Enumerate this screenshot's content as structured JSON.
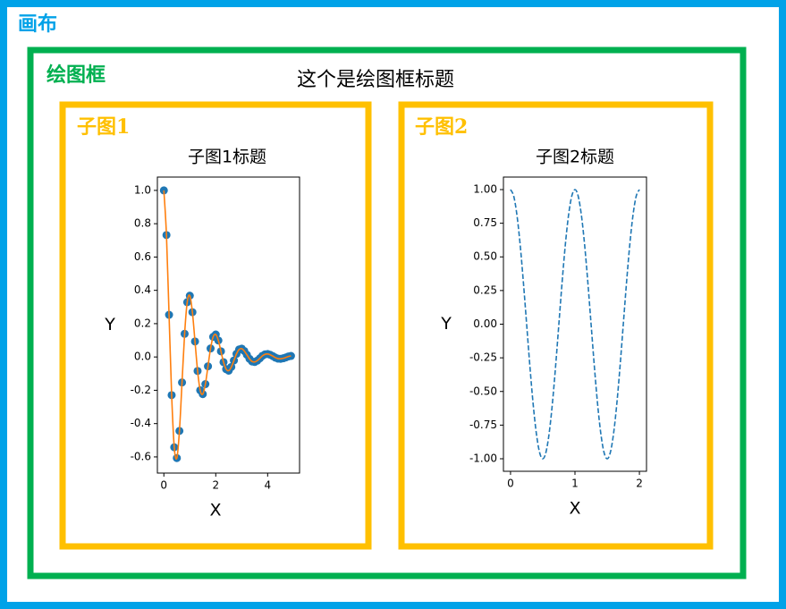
{
  "canvas_label": "画布",
  "figure": {
    "label": "绘图框",
    "title": "这个是绘图框标题"
  },
  "chart_data": [
    {
      "type": "line",
      "panel_label": "子图1",
      "title": "子图1标题",
      "xlabel": "X",
      "ylabel": "Y",
      "x": [
        0,
        0.1,
        0.2,
        0.3,
        0.4,
        0.5,
        0.6,
        0.7,
        0.8,
        0.9,
        1.0,
        1.1,
        1.2,
        1.3,
        1.4,
        1.5,
        1.6,
        1.7,
        1.8,
        1.9,
        2.0,
        2.1,
        2.2,
        2.3,
        2.4,
        2.5,
        2.6,
        2.7,
        2.8,
        2.9,
        3.0,
        3.1,
        3.2,
        3.3,
        3.4,
        3.5,
        3.6,
        3.7,
        3.8,
        3.9,
        4.0,
        4.1,
        4.2,
        4.3,
        4.4,
        4.5,
        4.6,
        4.7,
        4.8,
        4.9
      ],
      "series": [
        {
          "type": "scatter",
          "color": "#1f77b4",
          "values": [
            1.0,
            0.732,
            0.253,
            -0.229,
            -0.542,
            -0.607,
            -0.444,
            -0.153,
            0.139,
            0.329,
            0.368,
            0.269,
            0.093,
            -0.084,
            -0.2,
            -0.223,
            -0.163,
            -0.056,
            0.051,
            0.121,
            0.135,
            0.099,
            0.034,
            -0.031,
            -0.073,
            -0.082,
            -0.06,
            -0.021,
            0.019,
            0.045,
            0.05,
            0.036,
            0.013,
            -0.011,
            -0.027,
            -0.03,
            -0.022,
            -0.008,
            0.007,
            0.016,
            0.018,
            0.013,
            0.005,
            -0.004,
            -0.01,
            -0.011,
            -0.008,
            -0.003,
            0.003,
            0.006
          ]
        },
        {
          "type": "line",
          "color": "#ff7f0e",
          "values": [
            1.0,
            0.732,
            0.253,
            -0.229,
            -0.542,
            -0.607,
            -0.444,
            -0.153,
            0.139,
            0.329,
            0.368,
            0.269,
            0.093,
            -0.084,
            -0.2,
            -0.223,
            -0.163,
            -0.056,
            0.051,
            0.121,
            0.135,
            0.099,
            0.034,
            -0.031,
            -0.073,
            -0.082,
            -0.06,
            -0.021,
            0.019,
            0.045,
            0.05,
            0.036,
            0.013,
            -0.011,
            -0.027,
            -0.03,
            -0.022,
            -0.008,
            0.007,
            0.016,
            0.018,
            0.013,
            0.005,
            -0.004,
            -0.01,
            -0.011,
            -0.008,
            -0.003,
            0.003,
            0.006
          ]
        }
      ],
      "xlim": [
        -0.25,
        5.23
      ],
      "ylim": [
        -0.697,
        1.08
      ],
      "xticks": [
        0,
        2,
        4
      ],
      "yticks": [
        {
          "value": 1,
          "label": "1.0"
        },
        0.8,
        0.6,
        0.4,
        0.2,
        {
          "value": 0,
          "label": "0.0"
        },
        -0.2,
        -0.4,
        -0.6
      ]
    },
    {
      "type": "line",
      "panel_label": "子图2",
      "title": "子图2标题",
      "xlabel": "X",
      "ylabel": "Y",
      "x": [
        0,
        0.05,
        0.1,
        0.15,
        0.2,
        0.25,
        0.3,
        0.35,
        0.4,
        0.45,
        0.5,
        0.55,
        0.6,
        0.65,
        0.7,
        0.75,
        0.8,
        0.85,
        0.9,
        0.95,
        1.0,
        1.05,
        1.1,
        1.15,
        1.2,
        1.25,
        1.3,
        1.35,
        1.4,
        1.45,
        1.5,
        1.55,
        1.6,
        1.65,
        1.7,
        1.75,
        1.8,
        1.85,
        1.9,
        1.95,
        2.0
      ],
      "series": [
        {
          "type": "line",
          "color": "#1f77b4",
          "dashed": true,
          "values": [
            1,
            0.951,
            0.809,
            0.588,
            0.309,
            0,
            -0.309,
            -0.588,
            -0.809,
            -0.951,
            -1,
            -0.951,
            -0.809,
            -0.588,
            -0.309,
            0,
            0.309,
            0.588,
            0.809,
            0.951,
            1,
            0.951,
            0.809,
            0.588,
            0.309,
            0,
            -0.309,
            -0.588,
            -0.809,
            -0.951,
            -1,
            -0.951,
            -0.809,
            -0.588,
            -0.309,
            0,
            0.309,
            0.588,
            0.809,
            0.951,
            1
          ]
        }
      ],
      "xlim": [
        -0.11,
        2.11
      ],
      "ylim": [
        -1.093,
        1.093
      ],
      "xticks": [
        0,
        1,
        2
      ],
      "yticks": [
        {
          "value": 1,
          "label": "1.00"
        },
        0.75,
        {
          "value": 0.5,
          "label": "0.50"
        },
        0.25,
        {
          "value": 0,
          "label": "0.00"
        },
        -0.25,
        {
          "value": -0.5,
          "label": "-0.50"
        },
        -0.75,
        {
          "value": -1,
          "label": "-1.00"
        }
      ]
    }
  ]
}
